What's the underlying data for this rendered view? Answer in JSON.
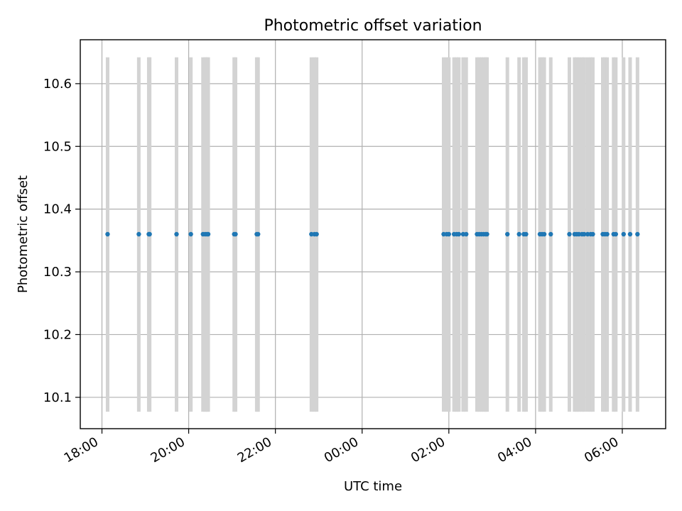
{
  "chart_data": {
    "type": "scatter",
    "title": "Photometric offset variation",
    "xlabel": "UTC time",
    "ylabel": "Photometric offset",
    "x_ticks": [
      "18:00",
      "20:00",
      "22:00",
      "00:00",
      "02:00",
      "04:00",
      "06:00"
    ],
    "x_tick_hours": [
      18,
      20,
      22,
      24,
      26,
      28,
      30
    ],
    "xlim_hours": [
      17.5,
      31.0
    ],
    "y_ticks": [
      "10.1",
      "10.2",
      "10.3",
      "10.4",
      "10.5",
      "10.6"
    ],
    "y_tick_values": [
      10.1,
      10.2,
      10.3,
      10.4,
      10.5,
      10.6
    ],
    "ylim": [
      10.05,
      10.67
    ],
    "grid": true,
    "point_color": "#1f77b4",
    "errorbar_color": "#d3d3d3",
    "series": [
      {
        "y": 10.36,
        "yerr_low": 10.077,
        "yerr_high": 10.642,
        "x_hours": [
          18.13,
          18.85,
          19.08,
          19.1,
          19.72,
          20.05,
          20.33,
          20.38,
          20.42,
          20.45,
          21.05,
          21.08,
          21.57,
          21.6,
          22.83,
          22.9,
          22.95,
          25.88,
          25.95,
          26.0,
          26.12,
          26.18,
          26.23,
          26.33,
          26.4,
          26.65,
          26.7,
          26.75,
          26.8,
          26.85,
          26.88,
          27.35,
          27.62,
          27.73,
          27.78,
          28.1,
          28.15,
          28.2,
          28.35,
          28.78,
          28.9,
          28.95,
          29.0,
          29.07,
          29.12,
          29.2,
          29.27,
          29.32,
          29.55,
          29.6,
          29.65,
          29.8,
          29.85,
          30.03,
          30.18,
          30.35
        ]
      }
    ]
  }
}
